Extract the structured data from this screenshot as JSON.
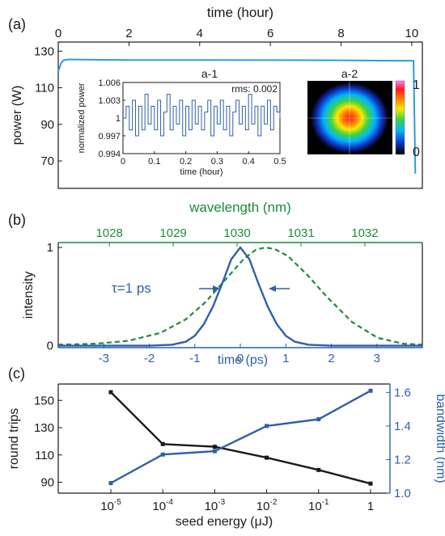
{
  "colors": {
    "blue": "#2f5faa",
    "cyan": "#2b9fd6",
    "green": "#1f8a3a",
    "black": "#1a1a1a"
  },
  "panel_labels": [
    "(a)",
    "(b)",
    "(c)"
  ],
  "chart_data": [
    {
      "id": "a",
      "type": "line",
      "xlabel": "time (hour)",
      "ylabel": "power (W)",
      "xlim": [
        0,
        10.3
      ],
      "ylim": [
        55,
        135
      ],
      "xticks": [
        0,
        2,
        4,
        6,
        8,
        10
      ],
      "yticks": [
        70,
        90,
        110,
        130
      ],
      "series": [
        {
          "x": [
            0,
            0.08,
            0.15,
            0.3,
            1,
            2,
            4,
            6,
            8,
            9.5,
            10.05,
            10.08,
            10.1
          ],
          "y": [
            119,
            123.5,
            125,
            125.5,
            125.3,
            125.2,
            125.2,
            125.1,
            125,
            124.8,
            124.8,
            90,
            63
          ]
        }
      ],
      "inset": {
        "label": "a-1",
        "type": "line",
        "xlabel": "time (hour)",
        "ylabel": "normalized power",
        "xlim": [
          0,
          0.5
        ],
        "ylim": [
          0.994,
          1.006
        ],
        "xticks": [
          0,
          0.1,
          0.2,
          0.3,
          0.4,
          0.5
        ],
        "xtick_labels": [
          "0",
          "0.1",
          "0.2",
          "0.3",
          "0.4",
          "0.5"
        ],
        "yticks": [
          0.994,
          0.997,
          1,
          1.003,
          1.006
        ],
        "ytick_labels": [
          "0.994",
          "0.997",
          "1",
          "1.003",
          "1.006"
        ],
        "annotation": "rms: 0.002",
        "series": [
          {
            "x": [
              0,
              0.01,
              0.02,
              0.03,
              0.04,
              0.05,
              0.06,
              0.07,
              0.08,
              0.09,
              0.1,
              0.11,
              0.12,
              0.13,
              0.14,
              0.15,
              0.16,
              0.17,
              0.18,
              0.19,
              0.2,
              0.21,
              0.22,
              0.23,
              0.24,
              0.25,
              0.26,
              0.27,
              0.28,
              0.29,
              0.3,
              0.31,
              0.32,
              0.33,
              0.34,
              0.35,
              0.36,
              0.37,
              0.38,
              0.39,
              0.4,
              0.41,
              0.42,
              0.43,
              0.44,
              0.45,
              0.46,
              0.47,
              0.48,
              0.49,
              0.5
            ],
            "y": [
              1,
              1.002,
              0.998,
              1.003,
              0.997,
              1.002,
              0.998,
              1.004,
              0.999,
              1.002,
              0.998,
              1.003,
              0.997,
              1.001,
              1.004,
              0.998,
              1.002,
              0.999,
              1.003,
              0.997,
              1.002,
              0.998,
              1.003,
              0.999,
              1.002,
              0.998,
              1.001,
              1.003,
              0.997,
              1.002,
              0.999,
              1.003,
              0.998,
              1.002,
              0.997,
              1.001,
              1.003,
              0.999,
              1.002,
              0.998,
              1.004,
              0.999,
              1.002,
              0.997,
              1.002,
              0.999,
              1.003,
              0.998,
              1.002,
              1.001,
              1
            ]
          }
        ]
      },
      "beam_profile": {
        "label": "a-2",
        "colorbar_max": "1",
        "colorbar_min": "0"
      }
    },
    {
      "id": "b",
      "type": "line",
      "xlabel": "time (ps)",
      "top_xlabel": "wavelength (nm)",
      "ylabel": "intensity",
      "xlim": [
        -4,
        4
      ],
      "ylim": [
        -0.02,
        1.05
      ],
      "xticks": [
        -3,
        -2,
        -1,
        0,
        1,
        2,
        3
      ],
      "yticks": [
        0,
        1
      ],
      "top_xlim": [
        1027.2,
        1032.9
      ],
      "top_xticks": [
        1028,
        1029,
        1030,
        1031,
        1032
      ],
      "annotation": "τ=1 ps",
      "series": [
        {
          "axis": "bottom",
          "style": "solid",
          "x": [
            -4,
            -3,
            -2,
            -1.5,
            -1.2,
            -1,
            -0.8,
            -0.6,
            -0.4,
            -0.2,
            0,
            0.2,
            0.4,
            0.6,
            0.8,
            1,
            1.2,
            1.5,
            2,
            3,
            4
          ],
          "y": [
            0,
            0,
            0,
            0.01,
            0.04,
            0.1,
            0.22,
            0.4,
            0.63,
            0.88,
            1,
            0.88,
            0.63,
            0.4,
            0.22,
            0.1,
            0.04,
            0.01,
            0,
            0,
            0
          ]
        },
        {
          "axis": "top",
          "style": "dashed",
          "x": [
            1027.2,
            1027.8,
            1028.3,
            1028.8,
            1029.2,
            1029.5,
            1029.8,
            1030.1,
            1030.3,
            1030.45,
            1030.6,
            1030.8,
            1031.1,
            1031.4,
            1031.8,
            1032.2,
            1032.6,
            1032.9
          ],
          "y": [
            0.01,
            0.02,
            0.05,
            0.13,
            0.27,
            0.44,
            0.66,
            0.88,
            0.98,
            1,
            0.98,
            0.91,
            0.72,
            0.5,
            0.24,
            0.08,
            0.02,
            0.01
          ]
        }
      ]
    },
    {
      "id": "c",
      "type": "line",
      "xlabel": "seed energy (μJ)",
      "ylabel_left": "round trips",
      "ylabel_right": "bandwidth (nm)",
      "categories": [
        "10",
        "10",
        "10",
        "10",
        "10",
        "1"
      ],
      "category_exponents": [
        "-5",
        "-4",
        "-3",
        "-2",
        "-1",
        ""
      ],
      "ylim_left": [
        82,
        162
      ],
      "yticks_left": [
        90,
        110,
        130,
        150
      ],
      "ylim_right": [
        1.0,
        1.65
      ],
      "yticks_right": [
        1.0,
        1.2,
        1.4,
        1.6
      ],
      "ytick_labels_right": [
        "1.0",
        "1.2",
        "1.4",
        "1.6"
      ],
      "series": [
        {
          "axis": "left",
          "color": "black",
          "values": [
            156,
            118,
            116,
            108,
            99,
            89
          ]
        },
        {
          "axis": "right",
          "color": "blue",
          "values": [
            1.06,
            1.23,
            1.25,
            1.4,
            1.44,
            1.61
          ]
        }
      ]
    }
  ]
}
